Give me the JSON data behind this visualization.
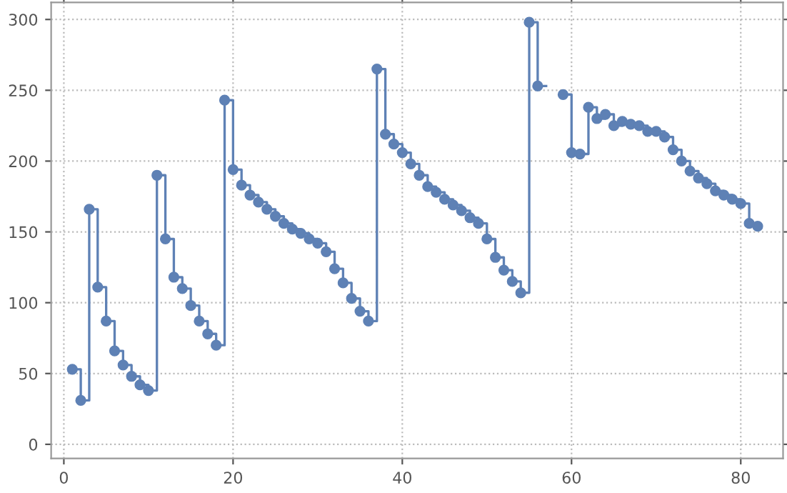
{
  "chart_data": {
    "type": "step",
    "x": [
      1,
      2,
      3,
      4,
      5,
      6,
      7,
      8,
      9,
      10,
      11,
      12,
      13,
      14,
      15,
      16,
      17,
      18,
      19,
      20,
      21,
      22,
      23,
      24,
      25,
      26,
      27,
      28,
      29,
      30,
      31,
      32,
      33,
      34,
      35,
      36,
      37,
      38,
      39,
      40,
      41,
      42,
      43,
      44,
      45,
      46,
      47,
      48,
      49,
      50,
      51,
      52,
      53,
      54,
      55,
      56,
      57,
      58,
      59,
      60,
      61,
      62,
      63,
      64,
      65,
      66,
      67,
      68,
      69,
      70,
      71,
      72,
      73,
      74,
      75,
      76,
      77,
      78,
      79,
      80,
      81,
      82
    ],
    "series": [
      {
        "color": "#5e81b5",
        "values": [
          53,
          31,
          166,
          111,
          87,
          66,
          56,
          48,
          42,
          38,
          190,
          145,
          118,
          110,
          98,
          87,
          78,
          70,
          243,
          194,
          183,
          176,
          171,
          166,
          161,
          156,
          152,
          149,
          145,
          142,
          136,
          124,
          114,
          103,
          94,
          87,
          265,
          219,
          212,
          206,
          198,
          190,
          182,
          178,
          173,
          169,
          165,
          160,
          156,
          145,
          132,
          123,
          115,
          107,
          298,
          253,
          null,
          null,
          247,
          206,
          205,
          238,
          230,
          233,
          225,
          228,
          226,
          225,
          221,
          221,
          217,
          208,
          200,
          193,
          188,
          184,
          179,
          176,
          173,
          170,
          156,
          154
        ]
      }
    ],
    "xlim": [
      -1.5,
      85
    ],
    "ylim": [
      -10,
      312
    ],
    "xticks": [
      0,
      20,
      40,
      60,
      80
    ],
    "yticks": [
      0,
      50,
      100,
      150,
      200,
      250,
      300
    ],
    "grid": true,
    "marker": "circle",
    "line_style": "solid"
  }
}
